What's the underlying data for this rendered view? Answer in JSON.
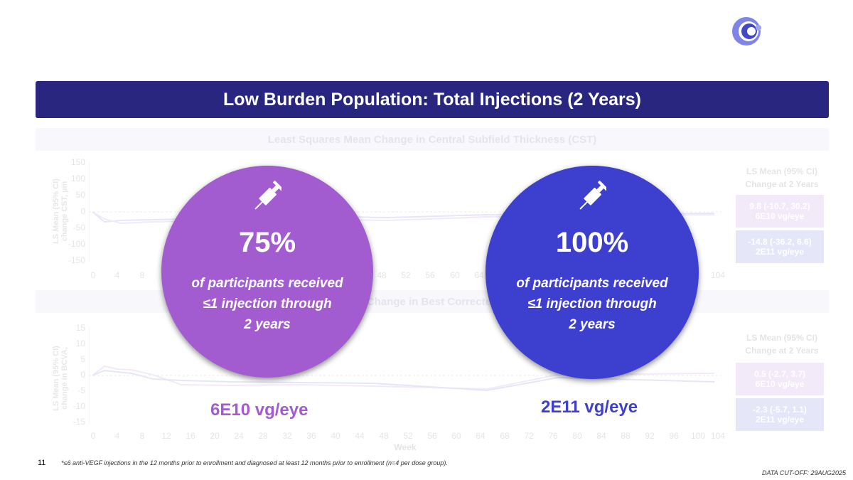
{
  "title": "Low Burden Population: Total Injections (2 Years)",
  "top_chart": {
    "header": "Least Squares Mean Change in Central Subfield Thickness (CST)",
    "ylabel_line1": "LS Mean (95% CI)",
    "ylabel_line2": "change CST, µm",
    "y_ticks": [
      "150",
      "100",
      "50",
      "0",
      "-50",
      "-100",
      "-150"
    ],
    "x_ticks": [
      "0",
      "4",
      "8",
      "48",
      "52",
      "56",
      "60",
      "64",
      "104"
    ],
    "ls_header_1": "LS Mean (95% CI)",
    "ls_header_2": "Change at 2 Years",
    "box1_value": "9.8 (-10.7, 30.2)",
    "box1_dose": "6E10 vg/eye",
    "box2_value": "-14.8 (-36.2, 6.6)",
    "box2_dose": "2E11 vg/eye"
  },
  "bottom_chart": {
    "header": "Change in Best Corrected",
    "ylabel_line1": "LS Mean (95% CI)",
    "ylabel_line2": "change in BCVA,",
    "y_ticks": [
      "15",
      "10",
      "5",
      "0",
      "-5",
      "-10",
      "-15"
    ],
    "x_ticks": [
      "0",
      "4",
      "8",
      "12",
      "16",
      "20",
      "24",
      "28",
      "32",
      "36",
      "40",
      "44",
      "48",
      "52",
      "56",
      "60",
      "64",
      "68",
      "72",
      "76",
      "80",
      "84",
      "88",
      "92",
      "96",
      "100",
      "104"
    ],
    "x_label": "Week",
    "ls_header_1": "LS Mean (95% CI)",
    "ls_header_2": "Change at 2 Years",
    "box1_value": "0.5 (-2.7, 3.7)",
    "box1_dose": "6E10 vg/eye",
    "box2_value": "-2.3 (-5.7, 1.1)",
    "box2_dose": "2E11 vg/eye"
  },
  "highlight_low": {
    "percent": "75%",
    "line1": "of participants received",
    "line2": "≤1 injection through",
    "line3": "2 years",
    "dose_label": "6E10 vg/eye",
    "color": "#a25cd0"
  },
  "highlight_high": {
    "percent": "100%",
    "line1": "of participants received",
    "line2": "≤1 injection through",
    "line3": "2 years",
    "dose_label": "2E11 vg/eye",
    "color": "#3d3fcf"
  },
  "page_number": "11",
  "footnote": "*≤6 anti-VEGF injections in the 12 months prior to enrollment and diagnosed at least 12 months prior to enrollment (n=4 per dose group).",
  "cutoff": "DATA CUT-OFF: 29AUG2025"
}
